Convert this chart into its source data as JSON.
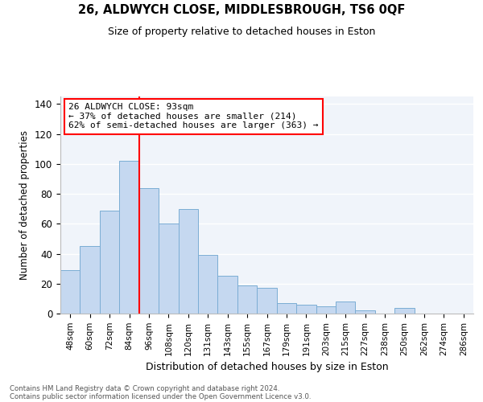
{
  "title_main": "26, ALDWYCH CLOSE, MIDDLESBROUGH, TS6 0QF",
  "title_sub": "Size of property relative to detached houses in Eston",
  "xlabel": "Distribution of detached houses by size in Eston",
  "ylabel": "Number of detached properties",
  "categories": [
    "48sqm",
    "60sqm",
    "72sqm",
    "84sqm",
    "96sqm",
    "108sqm",
    "120sqm",
    "131sqm",
    "143sqm",
    "155sqm",
    "167sqm",
    "179sqm",
    "191sqm",
    "203sqm",
    "215sqm",
    "227sqm",
    "238sqm",
    "250sqm",
    "262sqm",
    "274sqm",
    "286sqm"
  ],
  "values": [
    29,
    45,
    69,
    102,
    84,
    60,
    70,
    39,
    25,
    19,
    17,
    7,
    6,
    5,
    8,
    2,
    0,
    4,
    0,
    0,
    0
  ],
  "bar_color": "#c5d8f0",
  "bar_edge_color": "#7badd4",
  "annotation_line1": "26 ALDWYCH CLOSE: 93sqm",
  "annotation_line2": "← 37% of detached houses are smaller (214)",
  "annotation_line3": "62% of semi-detached houses are larger (363) →",
  "annotation_box_color": "white",
  "annotation_box_edge": "red",
  "vline_color": "red",
  "vline_index": 4,
  "ylim": [
    0,
    145
  ],
  "yticks": [
    0,
    20,
    40,
    60,
    80,
    100,
    120,
    140
  ],
  "footer1": "Contains HM Land Registry data © Crown copyright and database right 2024.",
  "footer2": "Contains public sector information licensed under the Open Government Licence v3.0.",
  "bg_color": "#f0f4fa",
  "grid_color": "white"
}
